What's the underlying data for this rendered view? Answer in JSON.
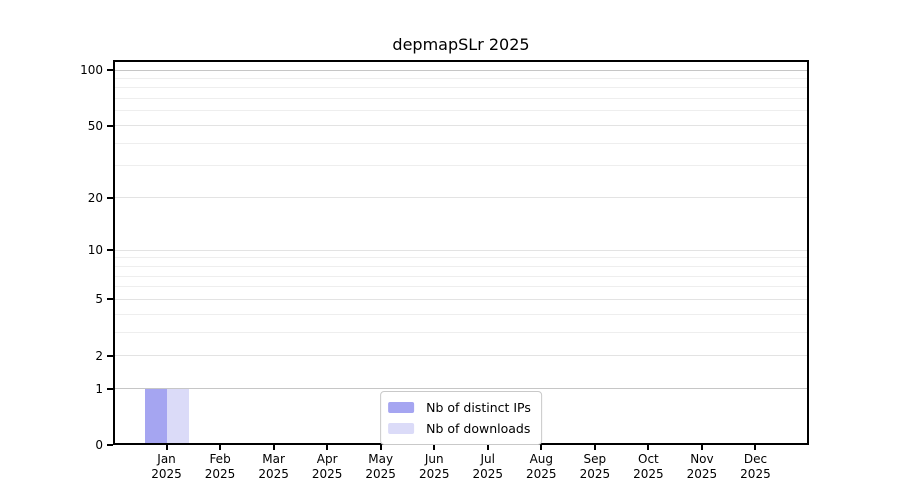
{
  "title": "depmapSLr 2025",
  "chart_data": {
    "type": "bar",
    "title": "depmapSLr 2025",
    "categories": [
      "Jan 2025",
      "Feb 2025",
      "Mar 2025",
      "Apr 2025",
      "May 2025",
      "Jun 2025",
      "Jul 2025",
      "Aug 2025",
      "Sep 2025",
      "Oct 2025",
      "Nov 2025",
      "Dec 2025"
    ],
    "series": [
      {
        "name": "Nb of distinct IPs",
        "color": "#a5a5f1",
        "values": [
          1,
          0,
          0,
          0,
          0,
          0,
          0,
          0,
          0,
          0,
          0,
          0
        ]
      },
      {
        "name": "Nb of downloads",
        "color": "#dbdbf8",
        "values": [
          1,
          0,
          0,
          0,
          0,
          0,
          0,
          0,
          0,
          0,
          0,
          0
        ]
      }
    ],
    "xlabel": "",
    "ylabel": "",
    "yscale": "log1p",
    "ylim": [
      0,
      112
    ],
    "yticks": [
      0,
      1,
      2,
      5,
      10,
      20,
      50,
      100
    ],
    "gridline_values": [
      1,
      2,
      3,
      4,
      5,
      6,
      7,
      8,
      9,
      10,
      20,
      30,
      40,
      50,
      60,
      70,
      80,
      90,
      100
    ],
    "grid": "horizontal",
    "legend_position": "lower center"
  },
  "colors": {
    "grid_emphasis": "#c6c6c6",
    "grid_major": "#e3e3e3",
    "grid_minor": "#eeeeee",
    "axis": "#000000",
    "background": "#ffffff",
    "legend_border": "#c9c9c9"
  }
}
